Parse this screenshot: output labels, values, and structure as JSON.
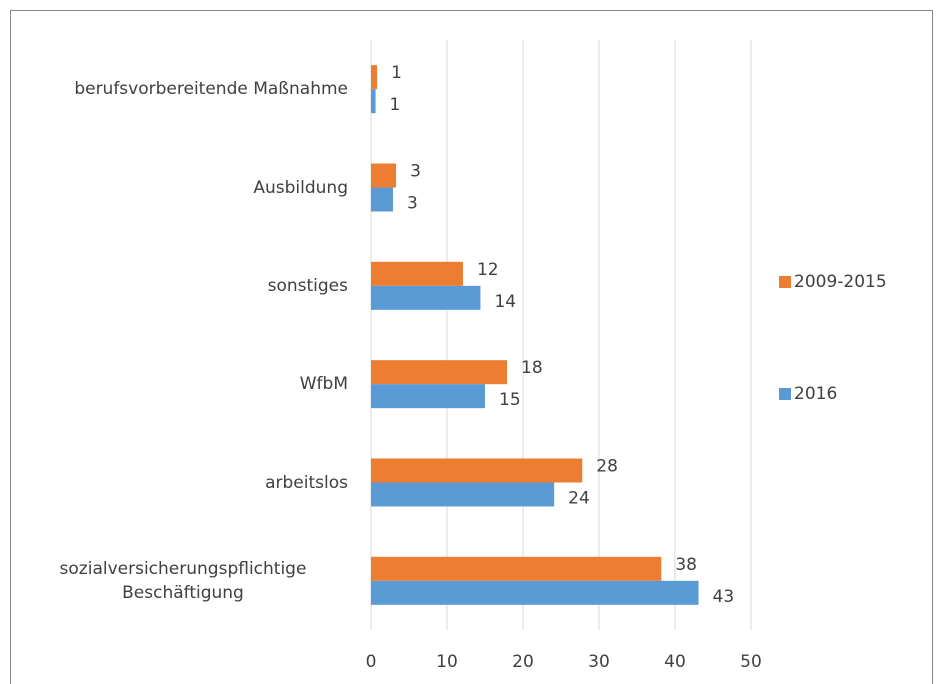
{
  "chart_data": {
    "type": "hbar",
    "categories": [
      "berufsvorbereitende Maßnahme",
      "Ausbildung",
      "sonstiges",
      "WfbM",
      "arbeitslos",
      "sozialversicherungspflichtige Beschäftigung"
    ],
    "series": [
      {
        "name": "2009-2015",
        "color": "#ed7d31",
        "values": [
          0.8,
          3.3,
          12.1,
          17.9,
          27.8,
          38.2
        ],
        "value_labels": [
          1,
          3,
          12,
          18,
          28,
          38
        ]
      },
      {
        "name": "2016",
        "color": "#5b9bd5",
        "values": [
          0.6,
          2.9,
          14.4,
          15,
          24.1,
          43.1
        ],
        "value_labels": [
          1,
          3,
          14,
          15,
          24,
          43
        ]
      }
    ],
    "xlim": [
      0,
      50
    ],
    "xticks": [
      0,
      10,
      20,
      30,
      40,
      50
    ],
    "grid": true,
    "legend": "right"
  }
}
